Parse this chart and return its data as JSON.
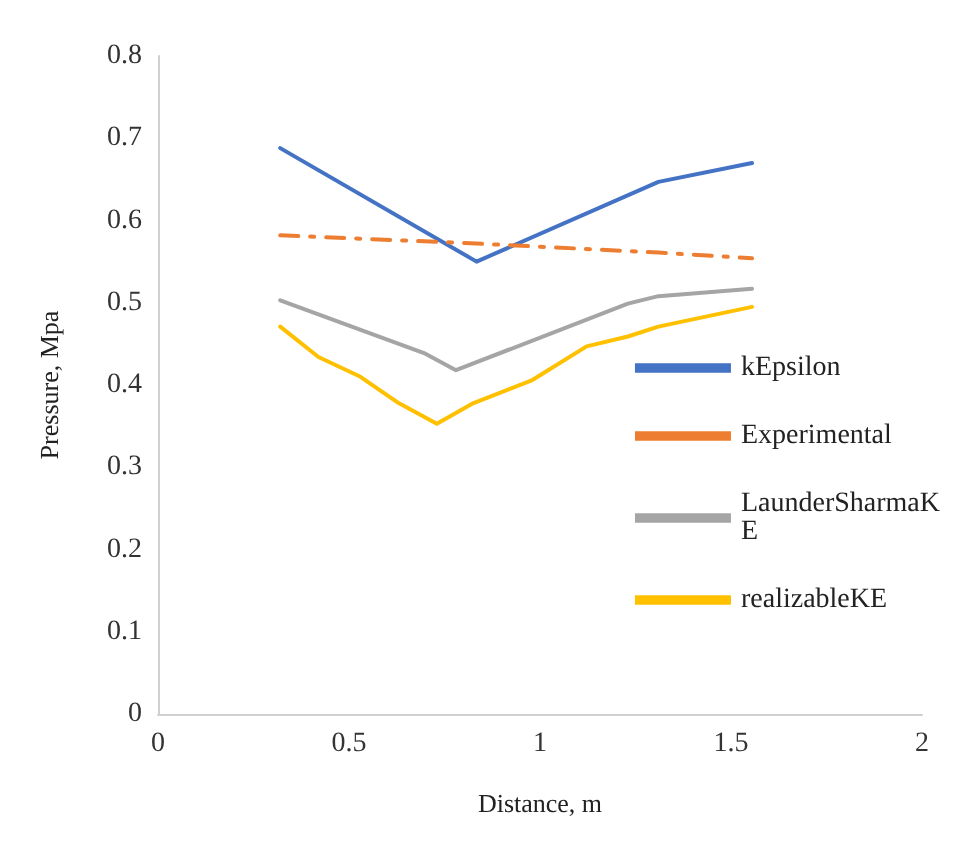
{
  "chart_data": {
    "type": "line",
    "xlabel": "Distance, m",
    "ylabel": "Pressure, Mpa",
    "xlim": [
      0,
      2
    ],
    "xticks": [
      0,
      0.5,
      1,
      1.5,
      2
    ],
    "ylim": [
      0,
      0.8
    ],
    "yticks": [
      0,
      0.1,
      0.2,
      0.3,
      0.4,
      0.5,
      0.6,
      0.7,
      0.8
    ],
    "grid": false,
    "legend": "right",
    "marker": "none",
    "series": [
      {
        "name": "kEpsilon",
        "color": "#4472c4",
        "line_style": "solid",
        "x": [
          0.32,
          0.834,
          1.31,
          1.555
        ],
        "values": [
          0.688,
          0.55,
          0.647,
          0.67
        ]
      },
      {
        "name": "Experimental",
        "color": "#ed7d31",
        "line_style": "dashed",
        "x": [
          0.32,
          0.834,
          1.31,
          1.555
        ],
        "values": [
          0.582,
          0.572,
          0.561,
          0.554
        ]
      },
      {
        "name": "LaunderSharmaKE",
        "color": "#a5a5a5",
        "line_style": "solid",
        "x": [
          0.32,
          0.7,
          0.78,
          1.23,
          1.31,
          1.555
        ],
        "values": [
          0.503,
          0.438,
          0.418,
          0.499,
          0.508,
          0.517
        ]
      },
      {
        "name": "realizableKE",
        "color": "#ffc000",
        "line_style": "solid",
        "x": [
          0.32,
          0.42,
          0.53,
          0.63,
          0.73,
          0.826,
          0.98,
          1.122,
          1.23,
          1.31,
          1.555
        ],
        "values": [
          0.471,
          0.434,
          0.41,
          0.378,
          0.353,
          0.378,
          0.406,
          0.447,
          0.459,
          0.471,
          0.495
        ]
      }
    ]
  }
}
